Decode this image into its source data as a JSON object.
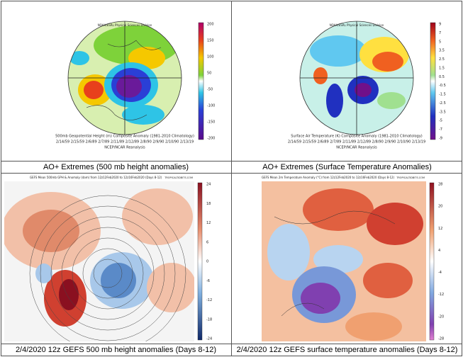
{
  "panels": [
    {
      "header": [
        "NOAA/ESRL Physical Sciences Division"
      ],
      "colorbar": [
        "200",
        "150",
        "100",
        "50",
        "-50",
        "-100",
        "-150",
        "-200"
      ],
      "footer": [
        "500mb Geopotential Height (m) Composite Anomaly (1981-2010 Climatology)",
        "2/14/59 2/15/59 2/6/89 2/7/89 2/11/89 2/12/89 2/8/90 2/9/90 2/10/90 2/13/19",
        "NCEP/NCAR Reanalysis"
      ],
      "caption": "AO+ Extremes (500 mb height anomalies)"
    },
    {
      "header": [
        "NOAA/ESRL Physical Sciences Division"
      ],
      "colorbar": [
        "9",
        "7",
        "5",
        "3.5",
        "2.5",
        "1.5",
        "0.5",
        "-0.5",
        "-1.5",
        "-2.5",
        "-3.5",
        "-5",
        "-7",
        "-9"
      ],
      "footer": [
        "Surface Air Temperature (K) Composite Anomaly (1981-2010 Climatology)",
        "2/14/59 2/15/59 2/6/89 2/7/89 2/11/89 2/12/89 2/8/90 2/9/90 2/10/90 2/13/19",
        "NCEP/NCAR Reanalysis"
      ],
      "caption": "AO+ Extremes (Surface Temperature Anomalies)"
    },
    {
      "header": [
        "GEFS Mean 500mb GPH & Anomaly (dam) from 12z12Feb2020 to 12z16Feb2020 (Days 8-12)",
        "TROPICALTIDBITS.COM"
      ],
      "colorbar": [
        "24",
        "18",
        "12",
        "6",
        "0",
        "-6",
        "-12",
        "-18",
        "-24"
      ],
      "footer": [],
      "caption": "2/4/2020 12z GEFS 500 mb height anomalies (Days 8-12)"
    },
    {
      "header": [
        "GEFS Mean 2m Temperature Anomaly (°C) from 12z12Feb2020 to 12z16Feb2020 (Days 8-12)",
        "TROPICALTIDBITS.COM"
      ],
      "colorbar": [
        "28",
        "20",
        "12",
        "4",
        "-4",
        "-12",
        "-20",
        "-28"
      ],
      "footer": [],
      "caption": "2/4/2020 12z GEFS surface temperature anomalies (Days 8-12)"
    }
  ]
}
